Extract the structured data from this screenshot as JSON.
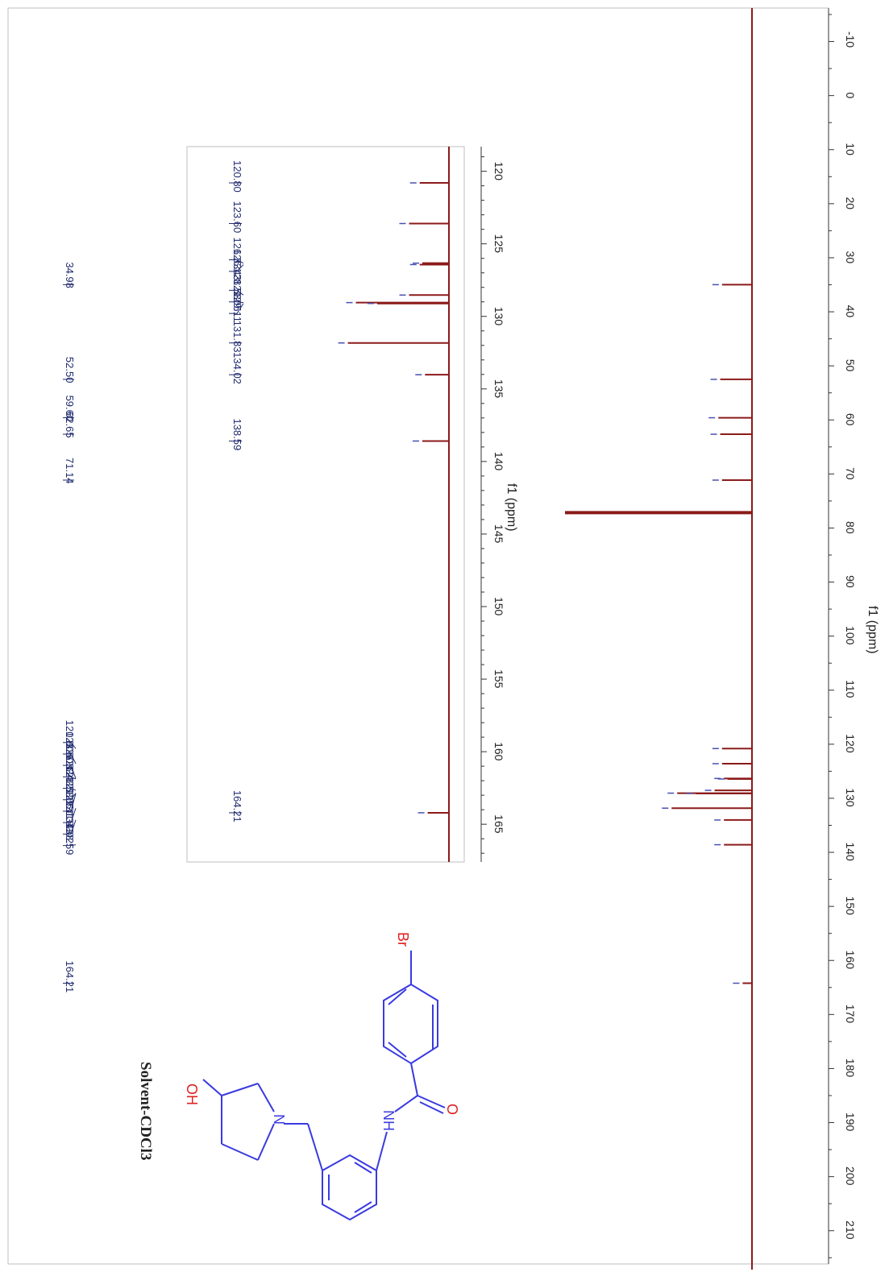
{
  "chart_data": [
    {
      "type": "line",
      "xlabel": "f1 (ppm)",
      "xlim": [
        -15,
        216
      ],
      "xticks": [
        -10,
        0,
        10,
        20,
        30,
        40,
        50,
        60,
        70,
        80,
        90,
        100,
        110,
        120,
        130,
        140,
        150,
        160,
        170,
        180,
        190,
        200,
        210
      ],
      "axis_reversed": false,
      "baseline_color": "#8b1a1a",
      "peaks": [
        {
          "x": 34.98,
          "height": 0.16
        },
        {
          "x": 52.5,
          "height": 0.17
        },
        {
          "x": 59.6,
          "height": 0.18
        },
        {
          "x": 62.65,
          "height": 0.17
        },
        {
          "x": 71.14,
          "height": 0.16
        },
        {
          "x": 77.16,
          "height": 1.0
        },
        {
          "x": 120.8,
          "height": 0.16
        },
        {
          "x": 123.6,
          "height": 0.16
        },
        {
          "x": 126.33,
          "height": 0.15
        },
        {
          "x": 126.43,
          "height": 0.13
        },
        {
          "x": 128.53,
          "height": 0.2
        },
        {
          "x": 129.05,
          "height": 0.4
        },
        {
          "x": 129.11,
          "height": 0.3
        },
        {
          "x": 131.83,
          "height": 0.43
        },
        {
          "x": 134.02,
          "height": 0.15
        },
        {
          "x": 138.59,
          "height": 0.15
        },
        {
          "x": 164.21,
          "height": 0.05
        }
      ],
      "peak_labels": [
        "34.98",
        "52.50",
        "59.60",
        "62.65",
        "71.14",
        "120.80",
        "123.60",
        "126.33",
        "126.43",
        "128.53",
        "129.05",
        "129.11",
        "131.83",
        "134.02",
        "138.59",
        "164.21"
      ],
      "cdcl3_triplet": [
        76.9,
        77.2,
        77.5
      ]
    },
    {
      "type": "line",
      "xlabel": "f1 (ppm)",
      "xlim": [
        118.3,
        167.6
      ],
      "xticks": [
        120,
        125,
        130,
        135,
        140,
        145,
        150,
        155,
        160,
        165
      ],
      "inset": true,
      "peaks": [
        {
          "x": 120.8,
          "height": 0.11
        },
        {
          "x": 123.6,
          "height": 0.15
        },
        {
          "x": 126.33,
          "height": 0.1
        },
        {
          "x": 126.43,
          "height": 0.11
        },
        {
          "x": 128.53,
          "height": 0.15
        },
        {
          "x": 129.05,
          "height": 0.35
        },
        {
          "x": 129.11,
          "height": 0.27
        },
        {
          "x": 131.83,
          "height": 0.38
        },
        {
          "x": 134.02,
          "height": 0.09
        },
        {
          "x": 138.59,
          "height": 0.1
        },
        {
          "x": 164.21,
          "height": 0.08
        }
      ],
      "peak_labels": [
        "120.80",
        "123.60",
        "126.33",
        "126.43",
        "128.53",
        "129.05",
        "129.11",
        "131.83",
        "134.02",
        "138.59",
        "164.21"
      ]
    }
  ],
  "molecule": {
    "solvent_label": "Solvent-CDCl3",
    "atoms": {
      "oh": "OH",
      "n": "N",
      "nh": "NH",
      "o": "O",
      "br": "Br"
    }
  },
  "colors": {
    "spectrum": "#8b1a1a",
    "labels": "#1f2a6e",
    "bonds": "#3a3ae0",
    "heteroatom": "#e02020"
  }
}
